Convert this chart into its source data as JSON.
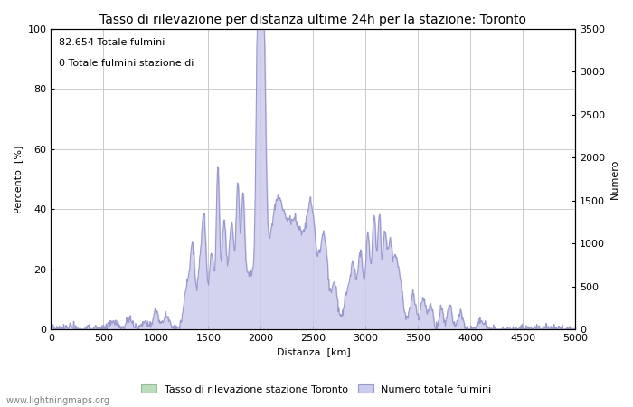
{
  "title": "Tasso di rilevazione per distanza ultime 24h per la stazione: Toronto",
  "xlabel": "Distanza  [km]",
  "ylabel_left": "Percento  [%]",
  "ylabel_right": "Numero",
  "annotation_line1": "82.654 Totale fulmini",
  "annotation_line2": "0 Totale fulmini stazione di",
  "legend_green": "Tasso di rilevazione stazione Toronto",
  "legend_blue": "Numero totale fulmini",
  "watermark": "www.lightningmaps.org",
  "xlim": [
    0,
    5000
  ],
  "ylim_left": [
    0,
    100
  ],
  "ylim_right": [
    0,
    3500
  ],
  "xticks": [
    0,
    500,
    1000,
    1500,
    2000,
    2500,
    3000,
    3500,
    4000,
    4500,
    5000
  ],
  "yticks_left": [
    0,
    20,
    40,
    60,
    80,
    100
  ],
  "yticks_right": [
    0,
    500,
    1000,
    1500,
    2000,
    2500,
    3000,
    3500
  ],
  "line_color": "#9999cc",
  "fill_color": "#ccccee",
  "green_fill_color": "#bbddbb",
  "green_line_color": "#99bb99",
  "bg_color": "#ffffff",
  "grid_color": "#cccccc",
  "title_fontsize": 10,
  "label_fontsize": 8,
  "tick_fontsize": 8,
  "annotation_fontsize": 8
}
